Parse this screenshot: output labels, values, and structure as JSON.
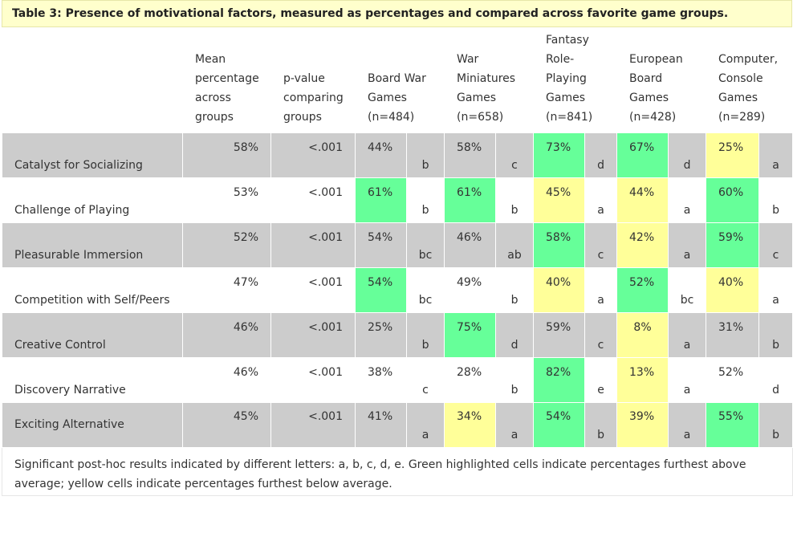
{
  "caption": "Table 3: Presence of motivational factors, measured as percentages and compared across favorite game groups.",
  "headers": {
    "mean": [
      "Mean",
      "percentage",
      "across",
      "groups"
    ],
    "pval": [
      "p-value",
      "comparing",
      "groups"
    ],
    "g1": [
      "Board War",
      "Games",
      "(n=484)"
    ],
    "g2": [
      "War",
      "Miniatures",
      "Games",
      "(n=658)"
    ],
    "g3": [
      "Fantasy",
      "Role-",
      "Playing",
      "Games",
      "(n=841)"
    ],
    "g4": [
      "European",
      "Board",
      "Games",
      "(n=428)"
    ],
    "g5": [
      "Computer,",
      "Console",
      "Games",
      "(n=289)"
    ]
  },
  "rows": [
    {
      "label": "Catalyst for Socializing",
      "mean": "58%",
      "p": "<.001",
      "cells": [
        {
          "pct": "44%",
          "letter": "b"
        },
        {
          "pct": "58%",
          "letter": "c"
        },
        {
          "pct": "73%",
          "letter": "d"
        },
        {
          "pct": "67%",
          "letter": "d"
        },
        {
          "pct": "25%",
          "letter": "a"
        }
      ]
    },
    {
      "label": "Challenge of Playing",
      "mean": "53%",
      "p": "<.001",
      "cells": [
        {
          "pct": "61%",
          "letter": "b"
        },
        {
          "pct": "61%",
          "letter": "b"
        },
        {
          "pct": "45%",
          "letter": "a"
        },
        {
          "pct": "44%",
          "letter": "a"
        },
        {
          "pct": "60%",
          "letter": "b"
        }
      ]
    },
    {
      "label": "Pleasurable Immersion",
      "mean": "52%",
      "p": "<.001",
      "cells": [
        {
          "pct": "54%",
          "letter": "bc"
        },
        {
          "pct": "46%",
          "letter": "ab"
        },
        {
          "pct": "58%",
          "letter": "c"
        },
        {
          "pct": "42%",
          "letter": "a"
        },
        {
          "pct": "59%",
          "letter": "c"
        }
      ]
    },
    {
      "label": "Competition with Self/Peers",
      "mean": "47%",
      "p": "<.001",
      "cells": [
        {
          "pct": "54%",
          "letter": "bc"
        },
        {
          "pct": "49%",
          "letter": "b"
        },
        {
          "pct": "40%",
          "letter": "a"
        },
        {
          "pct": "52%",
          "letter": "bc"
        },
        {
          "pct": "40%",
          "letter": "a"
        }
      ]
    },
    {
      "label": "Creative Control",
      "mean": "46%",
      "p": "<.001",
      "cells": [
        {
          "pct": "25%",
          "letter": "b"
        },
        {
          "pct": "75%",
          "letter": "d"
        },
        {
          "pct": "59%",
          "letter": "c"
        },
        {
          "pct": "8%",
          "letter": "a"
        },
        {
          "pct": "31%",
          "letter": "b"
        }
      ]
    },
    {
      "label": "Discovery Narrative",
      "mean": "46%",
      "p": "<.001",
      "cells": [
        {
          "pct": "38%",
          "letter": "c"
        },
        {
          "pct": "28%",
          "letter": "b"
        },
        {
          "pct": "82%",
          "letter": "e"
        },
        {
          "pct": "13%",
          "letter": "a"
        },
        {
          "pct": "52%",
          "letter": "d"
        }
      ]
    },
    {
      "label": "Exciting Alternative",
      "mean": "45%",
      "p": "<.001",
      "cells": [
        {
          "pct": "41%",
          "letter": "a"
        },
        {
          "pct": "34%",
          "letter": "a"
        },
        {
          "pct": "54%",
          "letter": "b"
        },
        {
          "pct": "39%",
          "letter": "a"
        },
        {
          "pct": "55%",
          "letter": "b"
        }
      ]
    }
  ],
  "note": "Significant post-hoc results indicated by different letters: a, b, c, d, e. Green highlighted cells indicate percentages furthest above average; yellow cells indicate percentages furthest below average.",
  "colors": {
    "green": "#66ff99",
    "yellow": "#ffff99",
    "gray_row": "#cccccc",
    "caption_bg": "#ffffcc"
  }
}
